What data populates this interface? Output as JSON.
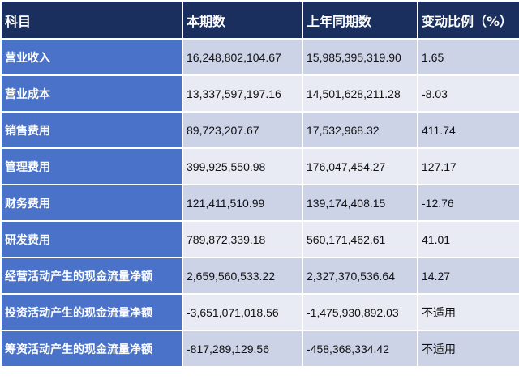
{
  "table": {
    "headers": [
      "科目",
      "本期数",
      "上年同期数",
      "变动比例（%）"
    ],
    "rows": [
      [
        "营业收入",
        "16,248,802,104.67",
        "15,985,395,319.90",
        "1.65"
      ],
      [
        "营业成本",
        "13,337,597,197.16",
        "14,501,628,211.28",
        "-8.03"
      ],
      [
        "销售费用",
        "89,723,207.67",
        "17,532,968.32",
        "411.74"
      ],
      [
        "管理费用",
        "399,925,550.98",
        "176,047,454.27",
        "127.17"
      ],
      [
        "财务费用",
        "121,411,510.99",
        "139,174,408.15",
        "-12.76"
      ],
      [
        "研发费用",
        "789,872,339.18",
        "560,171,462.61",
        "41.01"
      ],
      [
        "经营活动产生的现金流量净额",
        "2,659,560,533.22",
        "2,327,370,536.64",
        "14.27"
      ],
      [
        "投资活动产生的现金流量净额",
        "-3,651,071,018.56",
        "-1,475,930,892.03",
        "不适用"
      ],
      [
        "筹资活动产生的现金流量净额",
        "-817,289,129.56",
        "-458,368,334.42",
        "不适用"
      ]
    ]
  },
  "colors": {
    "header_bg": "#1b2f5e",
    "label_bg": "#4a72c9",
    "row_odd_bg": "#cdd3e7",
    "row_even_bg": "#e8ebf3"
  }
}
